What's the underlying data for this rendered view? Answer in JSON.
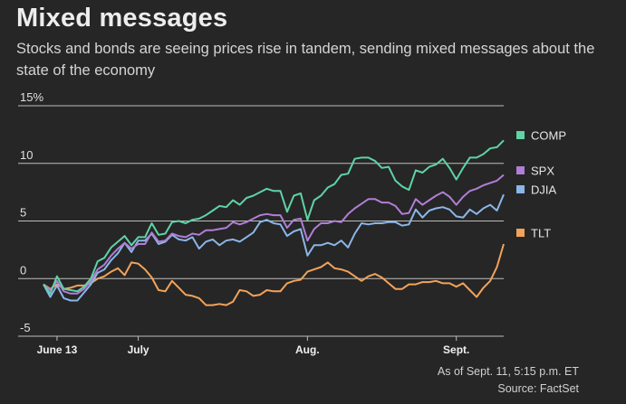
{
  "title": "Mixed messages",
  "subtitle": "Stocks and bonds are seeing prices rise in tandem, sending mixed messages about the state of the economy",
  "notes": {
    "as_of": "As of Sept. 11, 5:15 p.m. ET",
    "source": "Source: FactSet"
  },
  "chart_data": {
    "type": "line",
    "xlabel": "",
    "ylabel": "",
    "ylim": [
      -5,
      15
    ],
    "y_ticks": [
      15,
      10,
      5,
      0,
      -5
    ],
    "y_tick_labels": [
      "15%",
      "10",
      "5",
      "0",
      "-5"
    ],
    "x_tick_labels": [
      "June 13",
      "July",
      "Aug.",
      "Sept."
    ],
    "x_tick_positions": [
      2,
      14,
      39,
      61
    ],
    "n_points": 69,
    "grid": true,
    "legend_position": "right",
    "series": [
      {
        "name": "COMP",
        "color": "#5fd3a6",
        "values": [
          -0.5,
          -1.3,
          0.2,
          -0.9,
          -1.0,
          -1.1,
          -0.7,
          0.0,
          1.5,
          1.8,
          2.7,
          3.2,
          3.7,
          2.9,
          3.6,
          3.6,
          4.8,
          3.8,
          3.9,
          4.9,
          5.0,
          4.8,
          5.1,
          5.2,
          5.5,
          5.9,
          6.3,
          6.2,
          6.8,
          6.4,
          7.0,
          7.2,
          7.5,
          7.8,
          7.6,
          7.6,
          5.8,
          7.2,
          7.4,
          5.1,
          6.8,
          7.2,
          7.9,
          8.2,
          9.0,
          9.1,
          10.4,
          10.5,
          10.5,
          10.2,
          9.6,
          9.7,
          8.5,
          8.0,
          7.7,
          9.4,
          9.2,
          9.7,
          9.9,
          10.4,
          9.6,
          8.6,
          9.6,
          10.5,
          10.5,
          10.8,
          11.3,
          11.4,
          12.0
        ]
      },
      {
        "name": "SPX",
        "color": "#b07ed6",
        "values": [
          -0.5,
          -1.0,
          -0.2,
          -1.1,
          -1.3,
          -1.3,
          -0.9,
          -0.2,
          0.8,
          1.2,
          2.0,
          2.6,
          3.1,
          2.6,
          3.0,
          3.0,
          4.0,
          3.2,
          3.3,
          3.9,
          3.7,
          3.6,
          3.9,
          3.8,
          4.2,
          4.2,
          4.3,
          4.4,
          4.9,
          4.7,
          4.9,
          5.2,
          5.5,
          5.6,
          5.5,
          5.5,
          4.4,
          5.1,
          5.2,
          3.3,
          4.3,
          4.8,
          4.8,
          5.0,
          4.9,
          5.6,
          6.1,
          6.5,
          6.9,
          6.9,
          6.6,
          6.6,
          6.3,
          5.6,
          5.7,
          6.9,
          6.4,
          6.8,
          7.2,
          7.5,
          7.1,
          6.4,
          7.1,
          7.6,
          7.8,
          8.1,
          8.3,
          8.5,
          9.0
        ]
      },
      {
        "name": "DJIA",
        "color": "#8bb6e8",
        "values": [
          -0.5,
          -1.6,
          -0.6,
          -1.7,
          -1.9,
          -1.9,
          -1.2,
          -0.5,
          0.5,
          0.8,
          1.6,
          2.2,
          3.1,
          2.3,
          3.3,
          3.3,
          3.9,
          3.0,
          3.2,
          3.8,
          3.4,
          3.3,
          3.6,
          2.6,
          3.2,
          3.4,
          2.9,
          3.3,
          3.4,
          3.2,
          3.6,
          4.0,
          4.9,
          5.1,
          4.8,
          4.7,
          3.7,
          4.1,
          4.3,
          2.0,
          2.9,
          2.9,
          3.1,
          2.9,
          3.3,
          2.7,
          3.9,
          4.8,
          4.7,
          4.8,
          4.8,
          4.9,
          4.9,
          4.6,
          4.7,
          6.0,
          5.3,
          5.9,
          6.1,
          6.2,
          6.0,
          5.4,
          5.3,
          6.0,
          5.6,
          6.1,
          6.4,
          5.9,
          7.3
        ]
      },
      {
        "name": "TLT",
        "color": "#f2a35a",
        "values": [
          -0.5,
          -0.9,
          -0.5,
          -0.9,
          -0.8,
          -0.6,
          -0.6,
          -0.4,
          0.0,
          0.2,
          0.6,
          0.9,
          0.3,
          1.4,
          1.3,
          0.8,
          0.1,
          -1.0,
          -1.1,
          -0.2,
          -0.8,
          -1.4,
          -1.5,
          -1.7,
          -2.3,
          -2.3,
          -2.2,
          -2.3,
          -2.0,
          -1.0,
          -1.1,
          -1.5,
          -1.4,
          -1.0,
          -1.1,
          -1.1,
          -0.4,
          -0.2,
          -0.1,
          0.6,
          0.8,
          1.0,
          1.4,
          0.9,
          0.8,
          0.6,
          0.2,
          -0.2,
          0.2,
          0.4,
          0.1,
          -0.4,
          -0.9,
          -0.9,
          -0.5,
          -0.5,
          -0.3,
          -0.3,
          -0.2,
          -0.4,
          -0.4,
          -0.7,
          -0.4,
          -1.0,
          -1.6,
          -0.8,
          -0.2,
          1.0,
          3.0
        ]
      }
    ],
    "legend_order": [
      "COMP",
      "SPX",
      "DJIA",
      "TLT"
    ]
  }
}
